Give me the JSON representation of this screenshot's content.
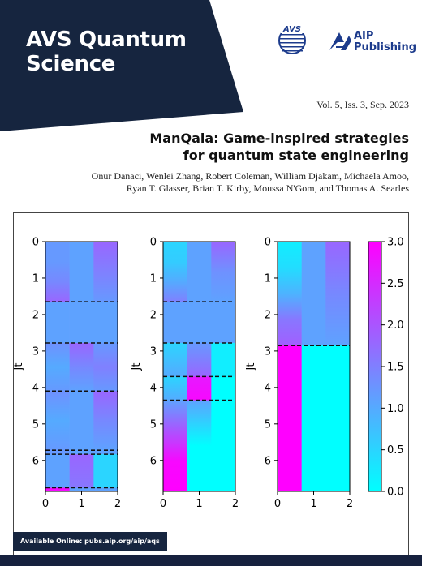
{
  "journal": {
    "title_line1": "AVS Quantum",
    "title_line2": "Science",
    "banner_color": "#16253f",
    "avs_logo_text": "AVS",
    "aip_logo_line1": "AIP",
    "aip_logo_line2": "Publishing",
    "brand_blue": "#1c3b8c"
  },
  "issue": {
    "volume_text": "Vol. 5, Iss. 3, Sep. 2023"
  },
  "article": {
    "title_line1": "ManQala: Game-inspired strategies",
    "title_line2": "for quantum state engineering",
    "authors_line1": "Onur Danaci, Wenlei Zhang, Robert Coleman, William Djakam, Michaela Amoo,",
    "authors_line2": "Ryan T. Glasser, Brian T. Kirby, Moussa N'Gom, and Thomas A. Searles"
  },
  "footer": {
    "available_online": "Available Online: pubs.aip.org/aip/aqs"
  },
  "chart_data": [
    {
      "type": "heatmap",
      "ylabel": "Jt",
      "x_ticks": [
        "0",
        "1",
        "2"
      ],
      "y_ticks": [
        "0",
        "1",
        "2",
        "3",
        "4",
        "5",
        "6"
      ],
      "xlim": [
        0,
        2
      ],
      "ylim": [
        6.85,
        0
      ],
      "dashed_lines_at": [
        1.65,
        2.78,
        4.1,
        5.72,
        5.83,
        6.75
      ],
      "columns": [
        {
          "x": 0,
          "segments": [
            [
              0,
              1.65,
              [
                1.2,
                1.2,
                1.4,
                1.8
              ]
            ],
            [
              1.65,
              2.78,
              [
                1.1
              ]
            ],
            [
              2.78,
              4.1,
              [
                1.3,
                1.0,
                1.2
              ]
            ],
            [
              4.1,
              5.72,
              [
                1.3,
                1.0,
                1.2
              ]
            ],
            [
              5.72,
              5.83,
              [
                1.2
              ]
            ],
            [
              5.83,
              6.75,
              [
                1.1
              ]
            ],
            [
              6.75,
              6.85,
              [
                2.9
              ]
            ]
          ]
        },
        {
          "x": 1,
          "segments": [
            [
              0,
              1.65,
              [
                1.1
              ]
            ],
            [
              1.65,
              2.78,
              [
                1.1
              ]
            ],
            [
              2.78,
              4.1,
              [
                1.8,
                1.4,
                1.1
              ]
            ],
            [
              4.1,
              5.72,
              [
                1.1
              ]
            ],
            [
              5.72,
              5.83,
              [
                1.1
              ]
            ],
            [
              5.83,
              6.75,
              [
                1.8,
                1.6
              ]
            ],
            [
              6.75,
              6.85,
              [
                1.1
              ]
            ]
          ]
        },
        {
          "x": 2,
          "segments": [
            [
              0,
              1.65,
              [
                1.8,
                1.5,
                1.2
              ]
            ],
            [
              1.65,
              2.78,
              [
                1.1
              ]
            ],
            [
              2.78,
              4.1,
              [
                1.2,
                1.5,
                1.2
              ]
            ],
            [
              4.1,
              5.72,
              [
                1.8,
                1.4,
                1.1
              ]
            ],
            [
              5.72,
              5.83,
              [
                1.1
              ]
            ],
            [
              5.83,
              6.75,
              [
                0.5
              ]
            ],
            [
              6.75,
              6.85,
              [
                1.1
              ]
            ]
          ]
        }
      ]
    },
    {
      "type": "heatmap",
      "ylabel": "Jt",
      "x_ticks": [
        "0",
        "1",
        "2"
      ],
      "y_ticks": [
        "0",
        "1",
        "2",
        "3",
        "4",
        "5",
        "6"
      ],
      "xlim": [
        0,
        2
      ],
      "ylim": [
        6.85,
        0
      ],
      "dashed_lines_at": [
        1.65,
        2.78,
        3.7,
        4.35
      ],
      "columns": [
        {
          "x": 0,
          "segments": [
            [
              0,
              1.65,
              [
                0.5,
                0.6,
                1.0,
                1.5
              ]
            ],
            [
              1.65,
              2.78,
              [
                1.1
              ]
            ],
            [
              2.78,
              3.7,
              [
                0.5,
                1.0
              ]
            ],
            [
              3.7,
              4.35,
              [
                0.5,
                1.0
              ]
            ],
            [
              4.35,
              6.85,
              [
                1.1,
                2.0,
                2.9,
                3.0
              ]
            ]
          ]
        },
        {
          "x": 1,
          "segments": [
            [
              0,
              1.65,
              [
                1.1
              ]
            ],
            [
              1.65,
              2.78,
              [
                1.1
              ]
            ],
            [
              2.78,
              3.7,
              [
                1.2,
                1.8
              ]
            ],
            [
              3.7,
              4.35,
              [
                2.7,
                2.9
              ]
            ],
            [
              4.35,
              6.85,
              [
                1.1,
                0.0,
                0.0
              ]
            ]
          ]
        },
        {
          "x": 2,
          "segments": [
            [
              0,
              1.65,
              [
                1.8,
                1.3,
                1.1
              ]
            ],
            [
              1.65,
              2.78,
              [
                1.1
              ]
            ],
            [
              2.78,
              3.7,
              [
                0.2
              ]
            ],
            [
              3.7,
              4.35,
              [
                0.0
              ]
            ],
            [
              4.35,
              6.85,
              [
                0.0
              ]
            ]
          ]
        }
      ]
    },
    {
      "type": "heatmap",
      "ylabel": "Jt",
      "x_ticks": [
        "0",
        "1",
        "2"
      ],
      "y_ticks": [
        "0",
        "1",
        "2",
        "3",
        "4",
        "5",
        "6"
      ],
      "xlim": [
        0,
        2
      ],
      "ylim": [
        6.85,
        0
      ],
      "dashed_lines_at": [
        2.85
      ],
      "columns": [
        {
          "x": 0,
          "segments": [
            [
              0,
              2.85,
              [
                0.2,
                0.4,
                0.9,
                1.6,
                1.9
              ]
            ],
            [
              2.85,
              6.85,
              [
                3.0
              ]
            ]
          ]
        },
        {
          "x": 1,
          "segments": [
            [
              0,
              2.85,
              [
                1.1
              ]
            ],
            [
              2.85,
              6.85,
              [
                0.0
              ]
            ]
          ]
        },
        {
          "x": 2,
          "segments": [
            [
              0,
              2.85,
              [
                1.8,
                1.4,
                1.1
              ]
            ],
            [
              2.85,
              6.85,
              [
                0.0
              ]
            ]
          ]
        }
      ]
    }
  ],
  "colorbar": {
    "ticks": [
      "0.0",
      "0.5",
      "1.0",
      "1.5",
      "2.0",
      "2.5",
      "3.0"
    ],
    "range": [
      0,
      3
    ],
    "colormap": "cool",
    "colors": [
      "#00ffff",
      "#ff00ff"
    ]
  }
}
